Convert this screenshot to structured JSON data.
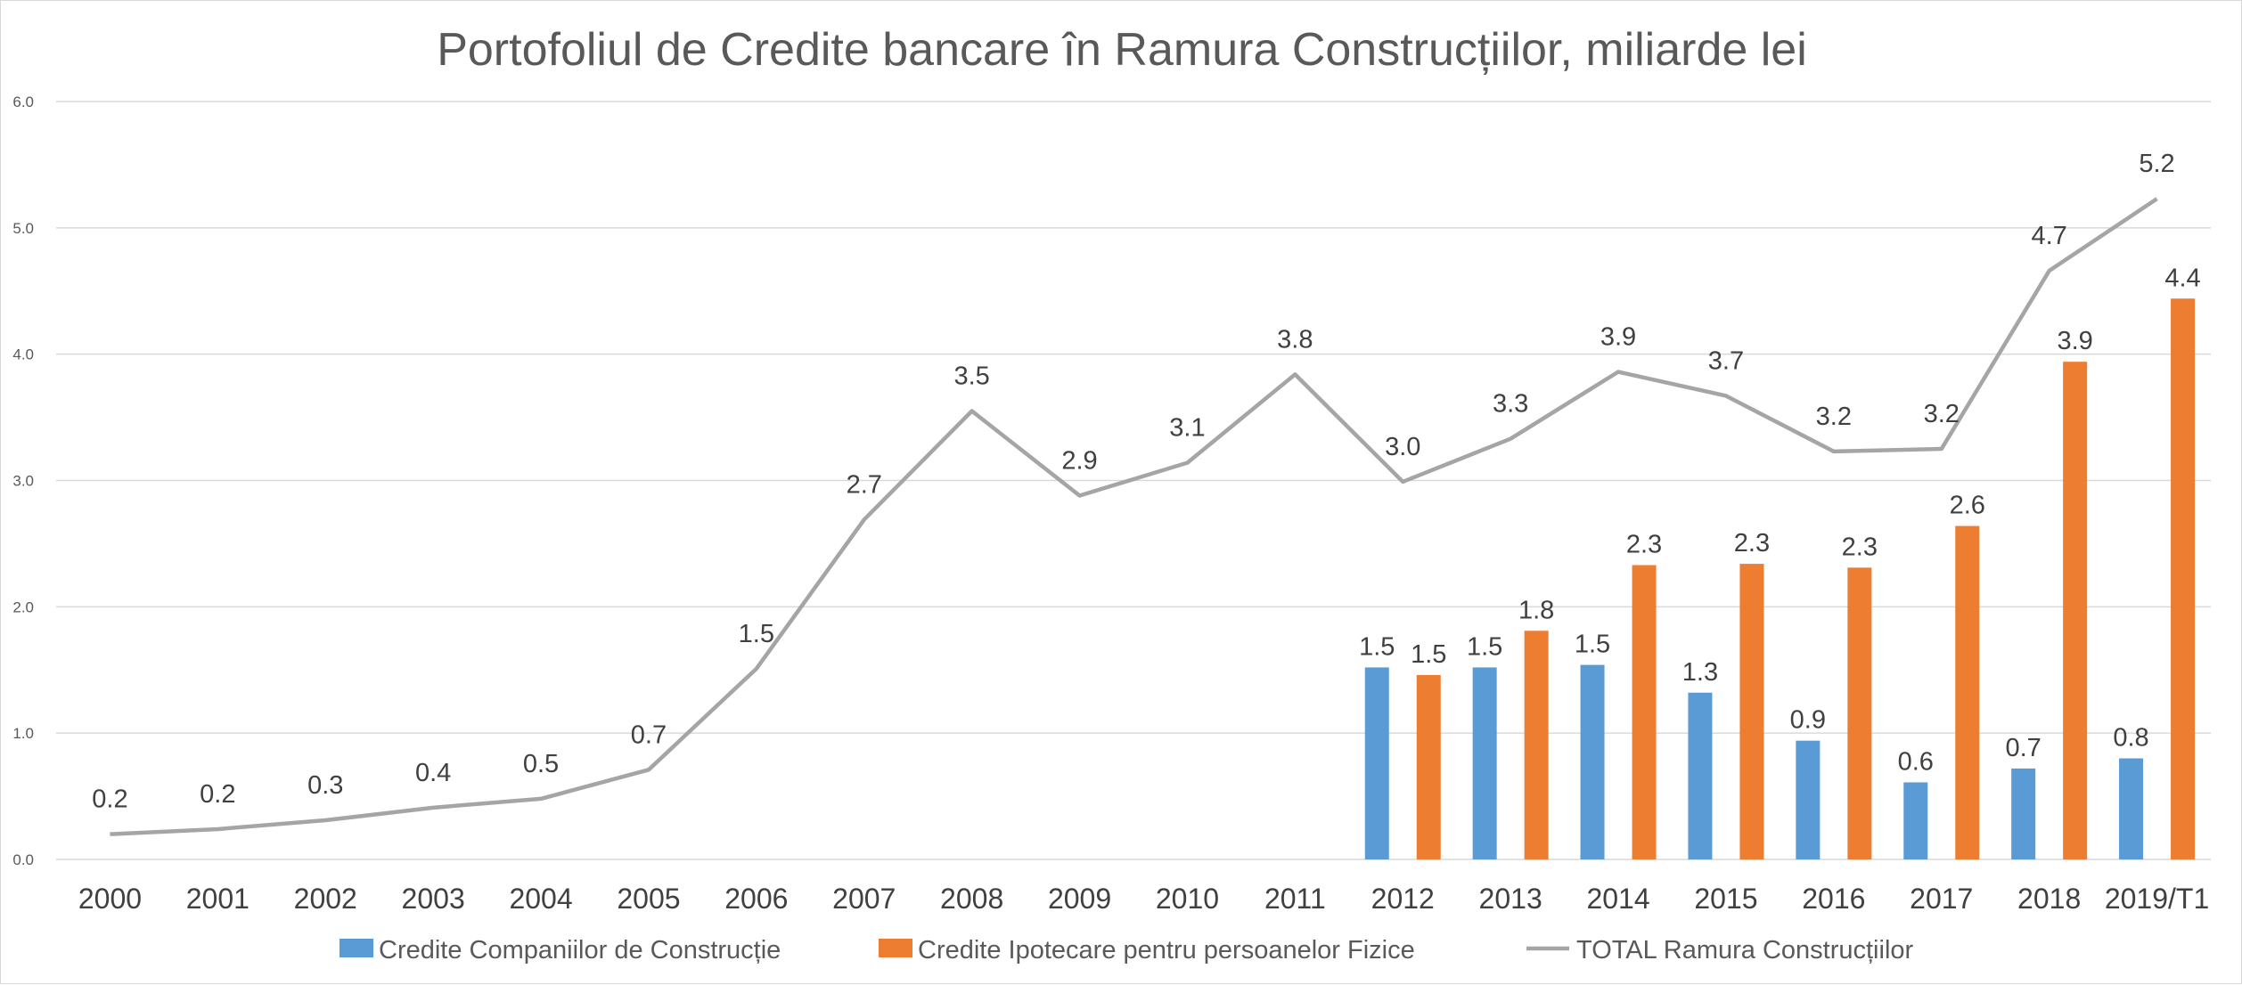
{
  "chart_data": {
    "type": "bar+line",
    "title": "Portofoliul de Credite bancare în Ramura Construcțiilor, miliarde lei",
    "categories": [
      "2000",
      "2001",
      "2002",
      "2003",
      "2004",
      "2005",
      "2006",
      "2007",
      "2008",
      "2009",
      "2010",
      "2011",
      "2012",
      "2013",
      "2014",
      "2015",
      "2016",
      "2017",
      "2018",
      "2019/T1"
    ],
    "ylim": [
      0,
      6
    ],
    "yticks": [
      "0.0",
      "1.0",
      "2.0",
      "3.0",
      "4.0",
      "5.0",
      "6.0"
    ],
    "grid": true,
    "legend_position": "bottom",
    "series": [
      {
        "name": "Credite Companiilor de Construcție",
        "type": "bar",
        "color": "#5b9bd5",
        "values": [
          null,
          null,
          null,
          null,
          null,
          null,
          null,
          null,
          null,
          null,
          null,
          null,
          1.52,
          1.52,
          1.54,
          1.32,
          0.94,
          0.61,
          0.72,
          0.8
        ],
        "labels": [
          null,
          null,
          null,
          null,
          null,
          null,
          null,
          null,
          null,
          null,
          null,
          null,
          "1.5",
          "1.5",
          "1.5",
          "1.3",
          "0.9",
          "0.6",
          "0.7",
          "0.8"
        ]
      },
      {
        "name": "Credite Ipotecare pentru  persoanelor Fizice",
        "type": "bar",
        "color": "#ed7d31",
        "values": [
          null,
          null,
          null,
          null,
          null,
          null,
          null,
          null,
          null,
          null,
          null,
          null,
          1.46,
          1.81,
          2.33,
          2.34,
          2.31,
          2.64,
          3.94,
          4.44
        ],
        "labels": [
          null,
          null,
          null,
          null,
          null,
          null,
          null,
          null,
          null,
          null,
          null,
          null,
          "1.5",
          "1.8",
          "2.3",
          "2.3",
          "2.3",
          "2.6",
          "3.9",
          "4.4"
        ]
      },
      {
        "name": "TOTAL Ramura Construcțiilor",
        "type": "line",
        "color": "#a5a5a5",
        "values": [
          0.2,
          0.24,
          0.31,
          0.41,
          0.48,
          0.71,
          1.51,
          2.69,
          3.55,
          2.88,
          3.14,
          3.84,
          2.99,
          3.33,
          3.86,
          3.67,
          3.23,
          3.25,
          4.66,
          5.23
        ],
        "labels": [
          "0.2",
          "0.2",
          "0.3",
          "0.4",
          "0.5",
          "0.7",
          "1.5",
          "2.7",
          "3.5",
          "2.9",
          "3.1",
          "3.8",
          "3.0",
          "3.3",
          "3.9",
          "3.7",
          "3.2",
          "3.2",
          "4.7",
          "5.2"
        ]
      }
    ]
  }
}
